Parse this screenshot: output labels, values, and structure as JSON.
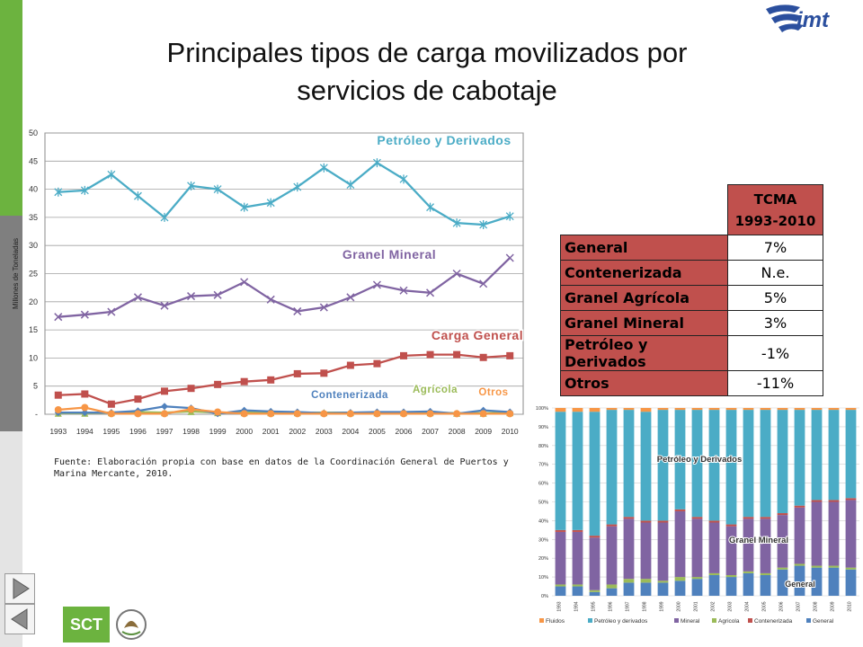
{
  "slide": {
    "title_line1": "Principales tipos de carga movilizados por",
    "title_line2": "servicios de cabotaje",
    "source_note": "Fuente: Elaboración propia con base en datos de la Coordinación General de Puertos y Marina Mercante, 2010.",
    "logos": {
      "imt": "imt",
      "sct": "SCT"
    },
    "nav": [
      "next-arrow-icon",
      "prev-arrow-icon"
    ],
    "colors": {
      "green": "#6cb33f",
      "teal": "#4bacc6",
      "purple": "#8064a2",
      "red": "#c0504d",
      "orange": "#f79646",
      "blue": "#4f81bd",
      "lime": "#9bbb59",
      "tcma_fill": "#c0504d"
    }
  },
  "tcma_table": {
    "header": [
      "TCMA",
      "1993-2010"
    ],
    "rows": [
      {
        "label": "General",
        "value": "7%"
      },
      {
        "label": "Contenerizada",
        "value": "N.e."
      },
      {
        "label": "Granel Agrícola",
        "value": "5%"
      },
      {
        "label": "Granel Mineral",
        "value": "3%"
      },
      {
        "label": "Petróleo y Derivados",
        "value": "-1%"
      },
      {
        "label": "Otros",
        "value": "-11%"
      }
    ]
  },
  "chart_data": [
    {
      "type": "line",
      "ylabel": "Millones de Toneladas",
      "ylim": [
        0,
        50
      ],
      "ytick_labels": [
        "-",
        "5",
        "10",
        "15",
        "20",
        "25",
        "30",
        "35",
        "40",
        "45",
        "50"
      ],
      "grid": true,
      "x": [
        "1993",
        "1994",
        "1995",
        "1996",
        "1997",
        "1998",
        "1999",
        "2000",
        "2001",
        "2002",
        "2003",
        "2004",
        "2005",
        "2006",
        "2007",
        "2008",
        "2009",
        "2010"
      ],
      "series": [
        {
          "name": "Petróleo y Derivados",
          "color": "#4bacc6",
          "marker": "star",
          "values": [
            39.5,
            39.8,
            42.6,
            38.8,
            35.0,
            40.6,
            40.0,
            36.8,
            37.6,
            40.4,
            43.8,
            40.8,
            44.7,
            41.8,
            36.8,
            34.0,
            33.7,
            35.2
          ]
        },
        {
          "name": "Granel Mineral",
          "color": "#8064a2",
          "marker": "x",
          "values": [
            17.3,
            17.7,
            18.2,
            20.8,
            19.3,
            21.0,
            21.2,
            23.5,
            20.4,
            18.3,
            19.0,
            20.8,
            23.0,
            22.0,
            21.6,
            25.0,
            23.2,
            27.8
          ]
        },
        {
          "name": "Carga General",
          "color": "#c0504d",
          "marker": "square",
          "values": [
            3.4,
            3.6,
            1.8,
            2.7,
            4.1,
            4.6,
            5.3,
            5.8,
            6.1,
            7.2,
            7.3,
            8.7,
            9.0,
            10.4,
            10.6,
            10.6,
            10.1,
            10.4
          ]
        },
        {
          "name": "Agrícola",
          "color": "#9bbb59",
          "marker": "triangle",
          "values": [
            0.2,
            0.2,
            0.3,
            0.4,
            0.3,
            0.5,
            0.3,
            0.3,
            0.3,
            0.3,
            0.3,
            0.3,
            0.3,
            0.3,
            0.3,
            0.2,
            0.2,
            0.3
          ]
        },
        {
          "name": "Contenerizada",
          "color": "#4f81bd",
          "marker": "diamond",
          "values": [
            0.3,
            0.3,
            0.3,
            0.6,
            1.4,
            1.1,
            0.1,
            0.7,
            0.5,
            0.4,
            0.2,
            0.3,
            0.4,
            0.4,
            0.5,
            0.1,
            0.7,
            0.4
          ]
        },
        {
          "name": "Otros",
          "color": "#f79646",
          "marker": "circle",
          "values": [
            0.8,
            1.2,
            0.1,
            0.1,
            0.1,
            0.9,
            0.4,
            0.1,
            0.1,
            0.1,
            0.1,
            0.1,
            0.1,
            0.1,
            0.1,
            0.1,
            0.1,
            0.1
          ]
        }
      ],
      "annotations": [
        "Petróleo y Derivados",
        "Granel Mineral",
        "Carga General",
        "Contenerizada",
        "Agrícola",
        "Otros"
      ]
    },
    {
      "type": "bar",
      "stacked_percent": true,
      "ylim": [
        0,
        100
      ],
      "ytick_labels": [
        "0%",
        "10%",
        "20%",
        "30%",
        "40%",
        "50%",
        "60%",
        "70%",
        "80%",
        "90%",
        "100%"
      ],
      "x": [
        "1993",
        "1994",
        "1995",
        "1996",
        "1997",
        "1998",
        "1999",
        "2000",
        "2001",
        "2002",
        "2003",
        "2004",
        "2005",
        "2006",
        "2007",
        "2008",
        "2009",
        "2010"
      ],
      "series": [
        {
          "name": "General",
          "color": "#4f81bd",
          "values": [
            5,
            5,
            2,
            4,
            7,
            7,
            7,
            8,
            9,
            11,
            10,
            12,
            11,
            14,
            16,
            15,
            15,
            14
          ]
        },
        {
          "name": "Agricola",
          "color": "#9bbb59",
          "values": [
            1,
            1,
            1,
            2,
            2,
            2,
            1,
            2,
            1,
            1,
            1,
            1,
            1,
            1,
            1,
            1,
            1,
            1
          ]
        },
        {
          "name": "Mineral",
          "color": "#8064a2",
          "values": [
            28,
            28,
            28,
            31,
            32,
            30,
            31,
            35,
            31,
            27,
            26,
            28,
            29,
            28,
            30,
            34,
            34,
            36
          ]
        },
        {
          "name": "Contenerizada",
          "color": "#c0504d",
          "values": [
            1,
            1,
            1,
            1,
            1,
            1,
            1,
            1,
            1,
            1,
            1,
            1,
            1,
            1,
            1,
            1,
            1,
            1
          ]
        },
        {
          "name": "Petróleo y derivados",
          "color": "#4bacc6",
          "values": [
            63,
            63,
            66,
            61,
            57,
            58,
            59,
            53,
            57,
            59,
            61,
            57,
            57,
            55,
            51,
            48,
            48,
            47
          ]
        },
        {
          "name": "Fluidos",
          "color": "#f79646",
          "values": [
            2,
            2,
            2,
            1,
            1,
            2,
            1,
            1,
            1,
            1,
            1,
            1,
            1,
            1,
            1,
            1,
            1,
            1
          ]
        }
      ],
      "legend_order": [
        "Fluidos",
        "Petróleo y derivados",
        "Mineral",
        "Agricola",
        "Contenerizada",
        "General"
      ],
      "legend_position": "bottom",
      "annotations": [
        "Petróleo y Derivados",
        "Granel Mineral",
        "General"
      ]
    }
  ]
}
